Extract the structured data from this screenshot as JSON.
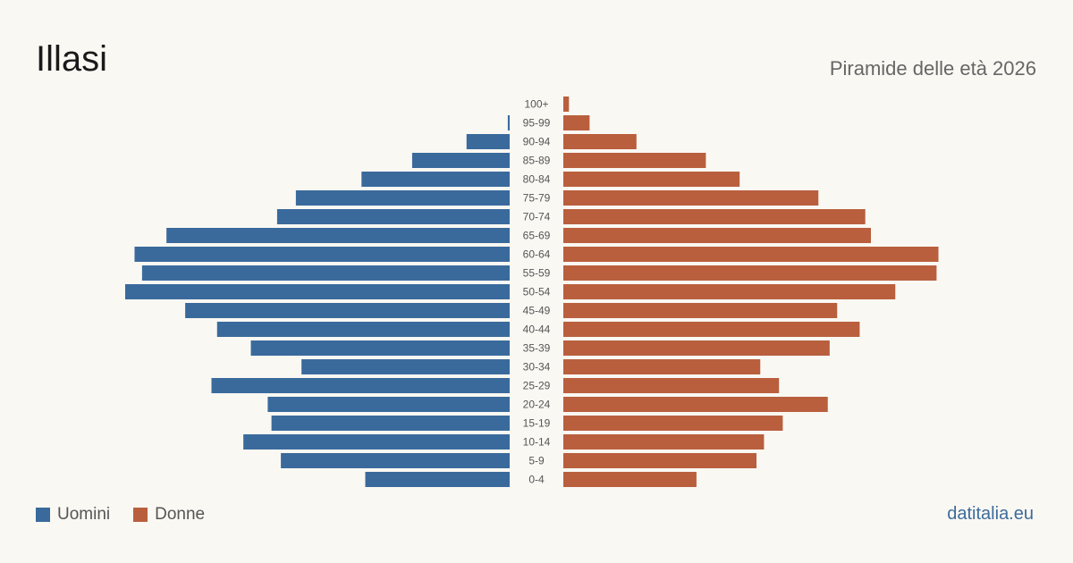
{
  "header": {
    "title": "Illasi",
    "subtitle": "Piramide delle età 2026"
  },
  "legend": {
    "men_label": "Uomini",
    "women_label": "Donne"
  },
  "source": "datitalia.eu",
  "colors": {
    "men": "#3a6a9c",
    "women": "#b95f3d",
    "background": "#faf8f3"
  },
  "chart_data": {
    "type": "bar",
    "orientation": "horizontal-pyramid",
    "categories": [
      "100+",
      "95-99",
      "90-94",
      "85-89",
      "80-84",
      "75-79",
      "70-74",
      "65-69",
      "60-64",
      "55-59",
      "50-54",
      "45-49",
      "40-44",
      "35-39",
      "30-34",
      "25-29",
      "20-24",
      "15-19",
      "10-14",
      "5-9",
      "0-4"
    ],
    "series": [
      {
        "name": "Uomini",
        "values": [
          0,
          1,
          23,
          52,
          79,
          114,
          124,
          183,
          200,
          196,
          205,
          173,
          156,
          138,
          111,
          159,
          129,
          127,
          142,
          122,
          77
        ]
      },
      {
        "name": "Donne",
        "values": [
          3,
          14,
          39,
          76,
          94,
          136,
          161,
          164,
          200,
          199,
          177,
          146,
          158,
          142,
          105,
          115,
          141,
          117,
          107,
          103,
          71
        ]
      }
    ],
    "xlim": [
      0,
      205
    ],
    "grid": false,
    "legend_position": "bottom-left"
  }
}
